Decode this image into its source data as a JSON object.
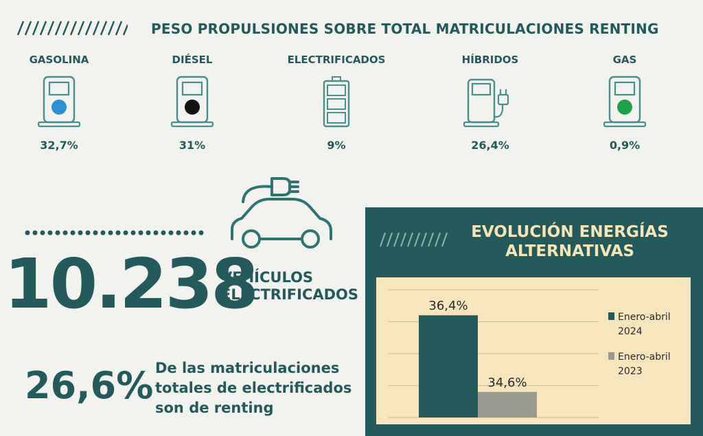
{
  "title": "PESO PROPULSIONES SOBRE TOTAL MATRICULACIONES RENTING",
  "propulsions": [
    {
      "label": "GASOLINA",
      "value": "32,7%",
      "icon": "fuel-pump-blue-icon",
      "color": "#2f8fd0"
    },
    {
      "label": "DIÉSEL",
      "value": "31%",
      "icon": "fuel-pump-black-icon",
      "color": "#111111"
    },
    {
      "label": "ELECTRIFICADOS",
      "value": "9%",
      "icon": "battery-icon",
      "color": "#4a8f8e"
    },
    {
      "label": "HÍBRIDOS",
      "value": "26,4%",
      "icon": "hybrid-pump-plug-icon",
      "color": "#4a8f8e"
    },
    {
      "label": "GAS",
      "value": "0,9%",
      "icon": "fuel-pump-green-icon",
      "color": "#1fa049"
    }
  ],
  "electric_car_icon": "electric-car-plug-icon",
  "vehicles": {
    "number": "10.238",
    "label_line1": "VEHÍCULOS",
    "label_line2": "ELECTRIFICADOS"
  },
  "renting_share": {
    "value": "26,6%",
    "line1": "De las matriculaciones",
    "line2": "totales de electrificados",
    "line3": "son de renting"
  },
  "panel": {
    "title_line1": "EVOLUCIÓN ENERGÍAS",
    "title_line2": "ALTERNATIVAS"
  },
  "colors": {
    "primary": "#245a5c",
    "panel_title": "#f4e5b8",
    "chart_bg": "#f6e5bd",
    "icon_stroke": "#4a8f8e"
  },
  "chart_data": {
    "type": "bar",
    "title": "",
    "xlabel": "",
    "ylabel": "",
    "ylim": [
      34,
      37
    ],
    "grid": true,
    "legend": "right",
    "series": [
      {
        "name": "Enero-abril 2024",
        "legend_line1": "Enero-abril",
        "legend_line2": "2024",
        "value": 36.4,
        "label": "36,4%",
        "color": "#245a5c"
      },
      {
        "name": "Enero-abril 2023",
        "legend_line1": "Enero-abril",
        "legend_line2": "2023",
        "value": 34.6,
        "label": "34,6%",
        "color": "#999b91"
      }
    ]
  }
}
